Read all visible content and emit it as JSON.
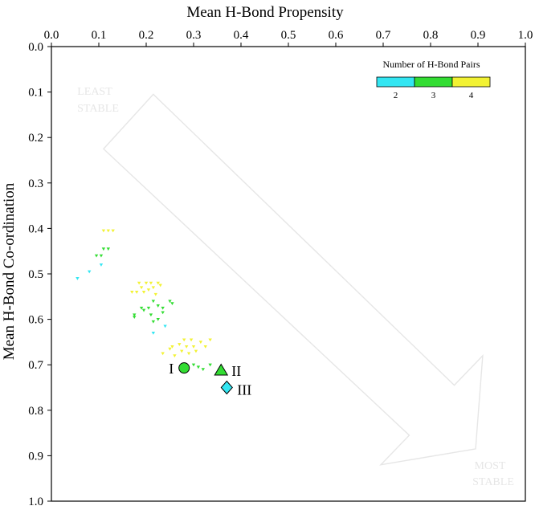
{
  "chart_data": {
    "type": "scatter",
    "title": "",
    "xlabel": "Mean H-Bond Propensity",
    "ylabel": "Mean H-Bond Co-ordination",
    "xlim": [
      0.0,
      1.0
    ],
    "ylim": [
      0.0,
      1.0
    ],
    "x_axis_position": "top",
    "y_axis_inverted": true,
    "x_ticks": [
      "0.0",
      "0.1",
      "0.2",
      "0.3",
      "0.4",
      "0.5",
      "0.6",
      "0.7",
      "0.8",
      "0.9",
      "1.0"
    ],
    "y_ticks": [
      "0.0",
      "0.1",
      "0.2",
      "0.3",
      "0.4",
      "0.5",
      "0.6",
      "0.7",
      "0.8",
      "0.9",
      "1.0"
    ],
    "grid": false,
    "legend": {
      "title": "Number of H-Bond Pairs",
      "placement": "top-right",
      "entries": [
        {
          "label": "2",
          "color": "#33e6f2"
        },
        {
          "label": "3",
          "color": "#33dd33"
        },
        {
          "label": "4",
          "color": "#f2f233"
        }
      ]
    },
    "annotations": {
      "least_stable": [
        "LEAST",
        "STABLE"
      ],
      "most_stable": [
        "MOST",
        "STABLE"
      ],
      "arrow_color": "#e6e6e6"
    },
    "series": [
      {
        "name": "2",
        "color": "#33e6f2",
        "points": [
          [
            0.055,
            0.51
          ],
          [
            0.08,
            0.495
          ],
          [
            0.105,
            0.48
          ],
          [
            0.215,
            0.63
          ],
          [
            0.24,
            0.615
          ]
        ]
      },
      {
        "name": "3",
        "color": "#33dd33",
        "points": [
          [
            0.095,
            0.46
          ],
          [
            0.105,
            0.46
          ],
          [
            0.11,
            0.445
          ],
          [
            0.12,
            0.445
          ],
          [
            0.175,
            0.59
          ],
          [
            0.175,
            0.595
          ],
          [
            0.19,
            0.575
          ],
          [
            0.195,
            0.58
          ],
          [
            0.205,
            0.575
          ],
          [
            0.21,
            0.59
          ],
          [
            0.215,
            0.56
          ],
          [
            0.225,
            0.57
          ],
          [
            0.235,
            0.575
          ],
          [
            0.235,
            0.585
          ],
          [
            0.25,
            0.56
          ],
          [
            0.255,
            0.565
          ],
          [
            0.215,
            0.605
          ],
          [
            0.225,
            0.6
          ],
          [
            0.3,
            0.7
          ],
          [
            0.31,
            0.705
          ],
          [
            0.32,
            0.71
          ],
          [
            0.335,
            0.7
          ]
        ]
      },
      {
        "name": "4",
        "color": "#f2f233",
        "points": [
          [
            0.11,
            0.405
          ],
          [
            0.12,
            0.405
          ],
          [
            0.13,
            0.405
          ],
          [
            0.17,
            0.54
          ],
          [
            0.18,
            0.54
          ],
          [
            0.185,
            0.52
          ],
          [
            0.19,
            0.53
          ],
          [
            0.195,
            0.54
          ],
          [
            0.2,
            0.52
          ],
          [
            0.205,
            0.535
          ],
          [
            0.21,
            0.52
          ],
          [
            0.215,
            0.53
          ],
          [
            0.22,
            0.545
          ],
          [
            0.225,
            0.52
          ],
          [
            0.23,
            0.525
          ],
          [
            0.235,
            0.675
          ],
          [
            0.25,
            0.665
          ],
          [
            0.255,
            0.66
          ],
          [
            0.26,
            0.68
          ],
          [
            0.27,
            0.655
          ],
          [
            0.275,
            0.67
          ],
          [
            0.28,
            0.645
          ],
          [
            0.285,
            0.66
          ],
          [
            0.29,
            0.675
          ],
          [
            0.295,
            0.645
          ],
          [
            0.3,
            0.66
          ],
          [
            0.305,
            0.67
          ],
          [
            0.315,
            0.65
          ],
          [
            0.325,
            0.66
          ],
          [
            0.335,
            0.645
          ]
        ]
      }
    ],
    "highlighted": [
      {
        "label": "I",
        "x": 0.28,
        "y": 0.707,
        "marker": "circle",
        "color": "#33dd33"
      },
      {
        "label": "II",
        "x": 0.358,
        "y": 0.712,
        "marker": "triangle",
        "color": "#33dd33"
      },
      {
        "label": "III",
        "x": 0.37,
        "y": 0.75,
        "marker": "diamond",
        "color": "#33e6f2"
      }
    ]
  }
}
